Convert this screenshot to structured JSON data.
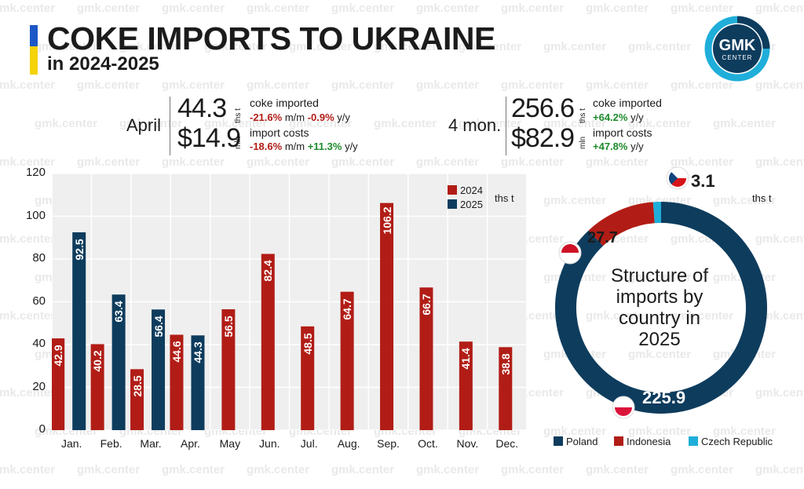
{
  "header": {
    "title": "COKE IMPORTS TO UKRAINE",
    "subtitle": "in 2024-2025",
    "logo_text_main": "GMK",
    "logo_text_sub": "CENTER",
    "watermark_text": "gmk.center"
  },
  "colors": {
    "y2024": "#b11d16",
    "y2025": "#0e3c5d",
    "czech": "#1faed9",
    "flag_blue": "#1c57c7",
    "flag_yellow": "#f5d20a"
  },
  "april": {
    "period": "April",
    "volume_value": "44.3",
    "volume_unit": "ths t",
    "volume_label": "coke imported",
    "volume_mm": "-21.6%",
    "volume_mm_suffix": " m/m ",
    "volume_yy": "-0.9%",
    "volume_yy_suffix": " y/y",
    "cost_value": "$14.9",
    "cost_unit": "mln",
    "cost_label": "import costs",
    "cost_mm": "-18.6%",
    "cost_mm_suffix": " m/m ",
    "cost_yy": "+11.3%",
    "cost_yy_suffix": " y/y"
  },
  "four_months": {
    "period": "4 mon.",
    "volume_value": "256.6",
    "volume_unit": "ths t",
    "volume_label": "coke imported",
    "volume_yy": "+64.2%",
    "volume_yy_suffix": " y/y",
    "cost_value": "$82.9",
    "cost_unit": "mln",
    "cost_label": "import costs",
    "cost_yy": "+47.8%",
    "cost_yy_suffix": " y/y"
  },
  "chart_data": [
    {
      "type": "bar",
      "categories": [
        "Jan.",
        "Feb.",
        "Mar.",
        "Apr.",
        "May",
        "Jun.",
        "Jul.",
        "Aug.",
        "Sep.",
        "Oct.",
        "Nov.",
        "Dec."
      ],
      "series": [
        {
          "name": "2024",
          "values": [
            42.9,
            40.2,
            28.5,
            44.6,
            56.5,
            82.4,
            48.5,
            64.7,
            106.2,
            66.7,
            41.4,
            38.8
          ]
        },
        {
          "name": "2025",
          "values": [
            92.5,
            63.4,
            56.4,
            44.3,
            null,
            null,
            null,
            null,
            null,
            null,
            null,
            null
          ]
        }
      ],
      "unit_label": "ths t",
      "yticks": [
        0,
        20,
        40,
        60,
        80,
        100,
        120
      ],
      "ylim": [
        0,
        120
      ],
      "grid": true,
      "legend": "top-right"
    },
    {
      "type": "pie",
      "title": "Structure of imports by country in 2025",
      "unit_label": "ths t",
      "slices": [
        {
          "name": "Poland",
          "value": 225.9
        },
        {
          "name": "Indonesia",
          "value": 27.7
        },
        {
          "name": "Czech Republic",
          "value": 3.1
        }
      ],
      "legend": "bottom"
    }
  ]
}
